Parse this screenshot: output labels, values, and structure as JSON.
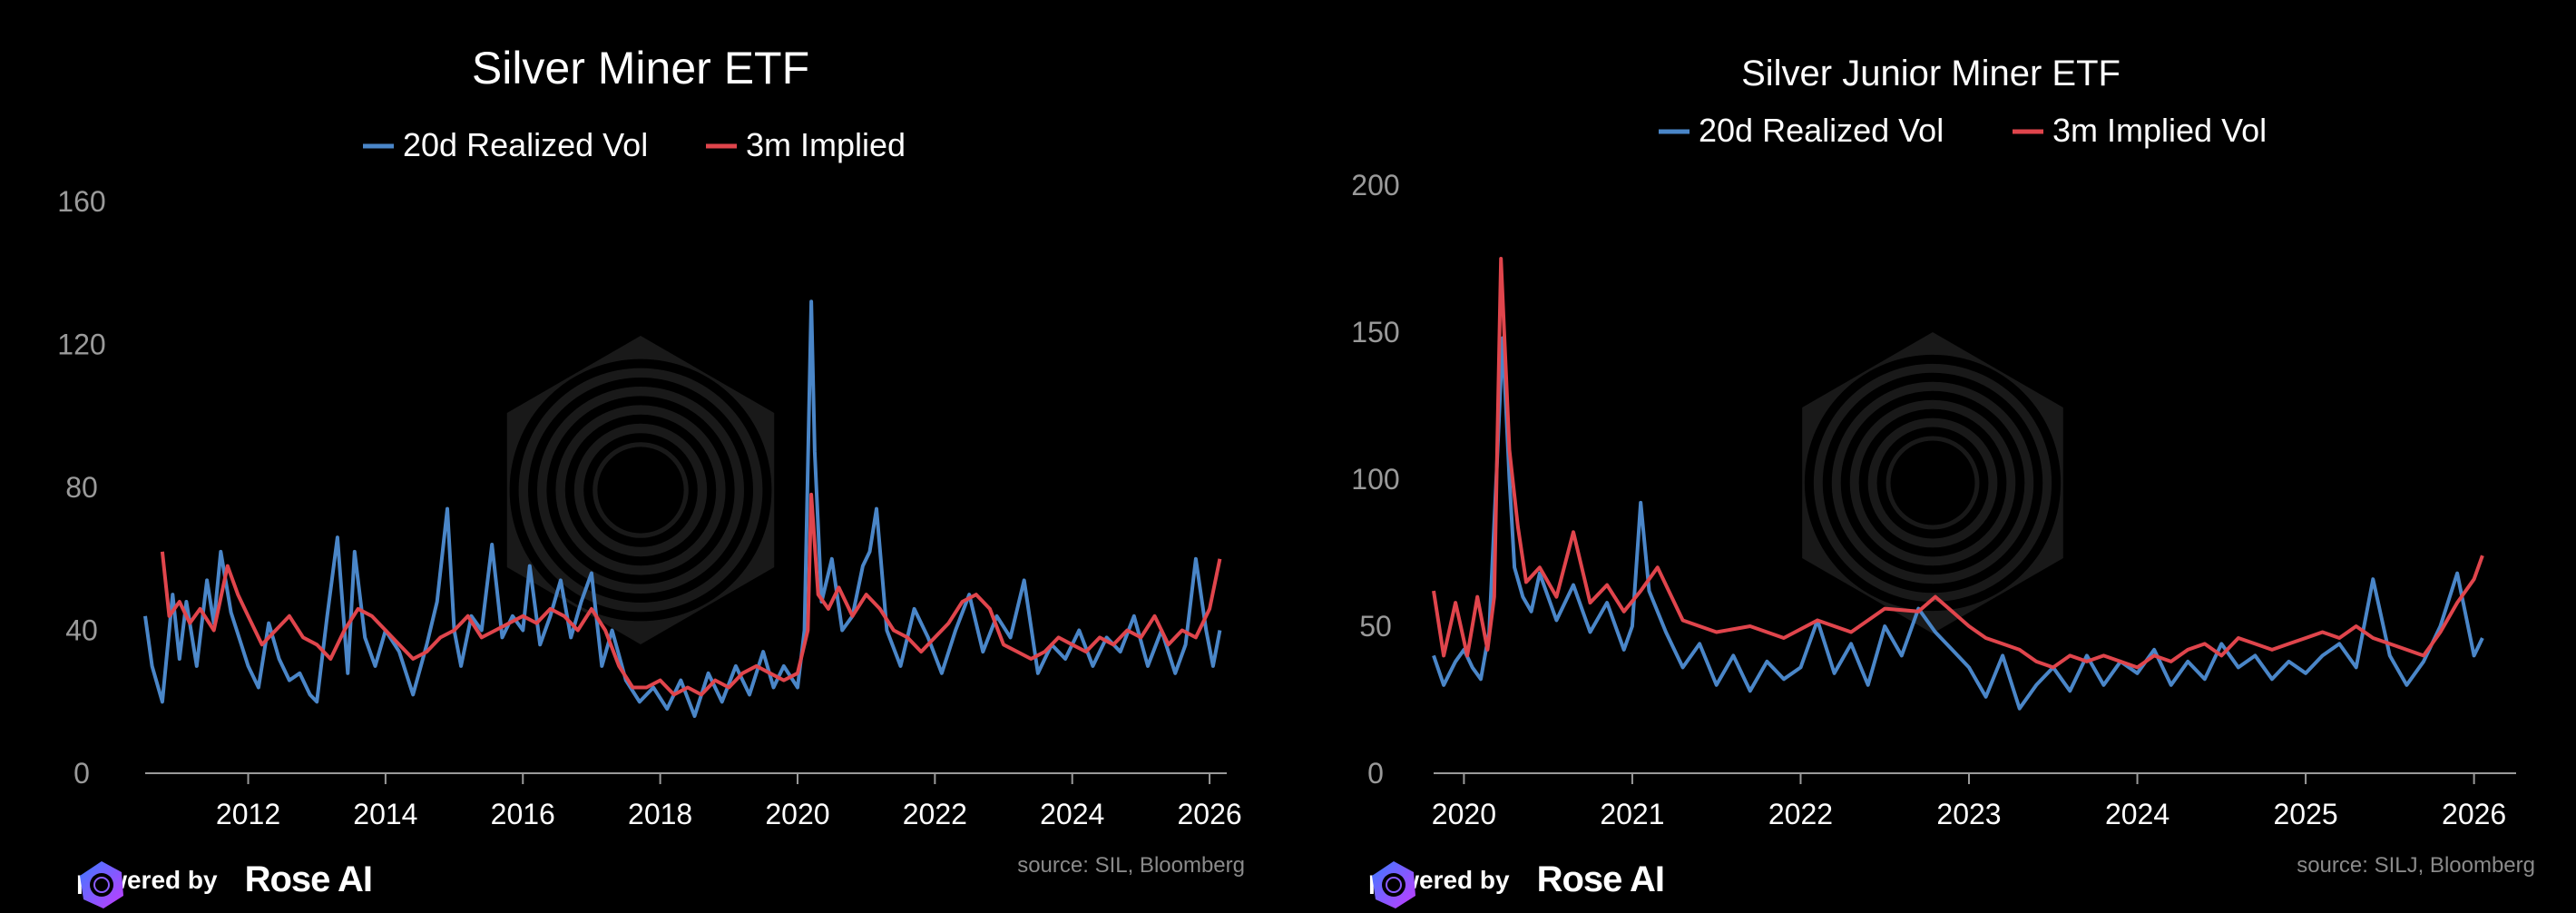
{
  "chart_data": [
    {
      "type": "line",
      "title": "Silver Miner ETF",
      "xlabel": "",
      "ylabel": "",
      "xlim": [
        2010.5,
        2026.25
      ],
      "ylim": [
        0,
        160
      ],
      "yticks": [
        0,
        40,
        80,
        120,
        160
      ],
      "xticks": [
        2012,
        2014,
        2016,
        2018,
        2020,
        2022,
        2024,
        2026
      ],
      "legend_position": "top-center",
      "source": "source: SIL, Bloomberg",
      "series": [
        {
          "name": "20d Realized Vol",
          "color": "#4a86c8",
          "x": [
            2010.5,
            2010.6,
            2010.75,
            2010.9,
            2011.0,
            2011.1,
            2011.25,
            2011.4,
            2011.5,
            2011.6,
            2011.75,
            2011.9,
            2012.0,
            2012.15,
            2012.3,
            2012.45,
            2012.6,
            2012.75,
            2012.9,
            2013.0,
            2013.15,
            2013.3,
            2013.45,
            2013.55,
            2013.7,
            2013.85,
            2014.0,
            2014.2,
            2014.4,
            2014.6,
            2014.75,
            2014.9,
            2015.0,
            2015.1,
            2015.25,
            2015.4,
            2015.55,
            2015.7,
            2015.85,
            2016.0,
            2016.1,
            2016.25,
            2016.4,
            2016.55,
            2016.7,
            2016.85,
            2017.0,
            2017.15,
            2017.3,
            2017.5,
            2017.7,
            2017.9,
            2018.1,
            2018.3,
            2018.5,
            2018.7,
            2018.9,
            2019.1,
            2019.3,
            2019.5,
            2019.65,
            2019.8,
            2020.0,
            2020.1,
            2020.2,
            2020.25,
            2020.35,
            2020.5,
            2020.65,
            2020.8,
            2020.95,
            2021.05,
            2021.15,
            2021.3,
            2021.5,
            2021.7,
            2021.9,
            2022.1,
            2022.3,
            2022.5,
            2022.7,
            2022.9,
            2023.1,
            2023.3,
            2023.5,
            2023.7,
            2023.9,
            2024.1,
            2024.3,
            2024.5,
            2024.7,
            2024.9,
            2025.1,
            2025.3,
            2025.5,
            2025.65,
            2025.8,
            2025.95,
            2026.05,
            2026.15
          ],
          "values": [
            44,
            30,
            20,
            50,
            32,
            48,
            30,
            54,
            42,
            62,
            45,
            36,
            30,
            24,
            42,
            32,
            26,
            28,
            22,
            20,
            44,
            66,
            28,
            62,
            38,
            30,
            40,
            34,
            22,
            36,
            48,
            74,
            40,
            30,
            44,
            40,
            64,
            38,
            44,
            40,
            58,
            36,
            44,
            54,
            38,
            48,
            56,
            30,
            40,
            26,
            20,
            24,
            18,
            26,
            16,
            28,
            20,
            30,
            22,
            34,
            24,
            30,
            24,
            40,
            132,
            90,
            48,
            60,
            40,
            44,
            58,
            62,
            74,
            40,
            30,
            46,
            38,
            28,
            40,
            50,
            34,
            44,
            38,
            54,
            28,
            36,
            32,
            40,
            30,
            38,
            34,
            44,
            30,
            40,
            28,
            36,
            60,
            40,
            30,
            40
          ]
        },
        {
          "name": "3m Implied",
          "color": "#e0454c",
          "x": [
            2010.75,
            2010.85,
            2011.0,
            2011.15,
            2011.3,
            2011.5,
            2011.7,
            2011.85,
            2012.0,
            2012.2,
            2012.4,
            2012.6,
            2012.8,
            2013.0,
            2013.2,
            2013.4,
            2013.6,
            2013.8,
            2014.0,
            2014.2,
            2014.4,
            2014.6,
            2014.8,
            2015.0,
            2015.2,
            2015.4,
            2015.6,
            2015.8,
            2016.0,
            2016.2,
            2016.4,
            2016.6,
            2016.8,
            2017.0,
            2017.2,
            2017.4,
            2017.6,
            2017.8,
            2018.0,
            2018.2,
            2018.4,
            2018.6,
            2018.8,
            2019.0,
            2019.2,
            2019.4,
            2019.6,
            2019.8,
            2020.0,
            2020.15,
            2020.2,
            2020.3,
            2020.45,
            2020.6,
            2020.8,
            2021.0,
            2021.2,
            2021.4,
            2021.6,
            2021.8,
            2022.0,
            2022.2,
            2022.4,
            2022.6,
            2022.8,
            2023.0,
            2023.2,
            2023.4,
            2023.6,
            2023.8,
            2024.0,
            2024.2,
            2024.4,
            2024.6,
            2024.8,
            2025.0,
            2025.2,
            2025.4,
            2025.6,
            2025.8,
            2026.0,
            2026.15
          ],
          "values": [
            62,
            44,
            48,
            42,
            46,
            40,
            58,
            50,
            44,
            36,
            40,
            44,
            38,
            36,
            32,
            40,
            46,
            44,
            40,
            36,
            32,
            34,
            38,
            40,
            44,
            38,
            40,
            42,
            44,
            42,
            46,
            44,
            40,
            46,
            40,
            30,
            24,
            24,
            26,
            22,
            24,
            22,
            26,
            24,
            28,
            30,
            28,
            26,
            28,
            40,
            78,
            50,
            46,
            52,
            44,
            50,
            46,
            40,
            38,
            34,
            38,
            42,
            48,
            50,
            46,
            36,
            34,
            32,
            34,
            38,
            36,
            34,
            38,
            36,
            40,
            38,
            44,
            36,
            40,
            38,
            46,
            60
          ]
        }
      ]
    },
    {
      "type": "line",
      "title": "Silver Junior Miner ETF",
      "xlabel": "",
      "ylabel": "",
      "xlim": [
        2019.82,
        2026.25
      ],
      "ylim": [
        0,
        200
      ],
      "yticks": [
        0,
        50,
        100,
        150,
        200
      ],
      "xticks": [
        2020,
        2021,
        2022,
        2023,
        2024,
        2025,
        2026
      ],
      "legend_position": "top-center",
      "source": "source: SILJ, Bloomberg",
      "series": [
        {
          "name": "20d Realized Vol",
          "color": "#4a86c8",
          "x": [
            2019.82,
            2019.88,
            2019.95,
            2020.0,
            2020.05,
            2020.1,
            2020.15,
            2020.2,
            2020.23,
            2020.27,
            2020.3,
            2020.35,
            2020.4,
            2020.45,
            2020.55,
            2020.65,
            2020.75,
            2020.85,
            2020.95,
            2021.0,
            2021.05,
            2021.1,
            2021.2,
            2021.3,
            2021.4,
            2021.5,
            2021.6,
            2021.7,
            2021.8,
            2021.9,
            2022.0,
            2022.1,
            2022.2,
            2022.3,
            2022.4,
            2022.5,
            2022.6,
            2022.7,
            2022.8,
            2022.9,
            2023.0,
            2023.1,
            2023.2,
            2023.3,
            2023.4,
            2023.5,
            2023.6,
            2023.7,
            2023.8,
            2023.9,
            2024.0,
            2024.1,
            2024.2,
            2024.3,
            2024.4,
            2024.5,
            2024.6,
            2024.7,
            2024.8,
            2024.9,
            2025.0,
            2025.1,
            2025.2,
            2025.3,
            2025.4,
            2025.5,
            2025.6,
            2025.7,
            2025.8,
            2025.9,
            2026.0,
            2026.05
          ],
          "values": [
            40,
            30,
            38,
            42,
            36,
            32,
            48,
            110,
            148,
            100,
            70,
            60,
            55,
            68,
            52,
            64,
            48,
            58,
            42,
            50,
            92,
            62,
            48,
            36,
            44,
            30,
            40,
            28,
            38,
            32,
            36,
            52,
            34,
            44,
            30,
            50,
            40,
            56,
            48,
            42,
            36,
            26,
            40,
            22,
            30,
            36,
            28,
            40,
            30,
            38,
            34,
            42,
            30,
            38,
            32,
            44,
            36,
            40,
            32,
            38,
            34,
            40,
            44,
            36,
            66,
            40,
            30,
            38,
            50,
            68,
            40,
            46
          ]
        },
        {
          "name": "3m Implied Vol",
          "color": "#e0454c",
          "x": [
            2019.82,
            2019.88,
            2019.95,
            2020.02,
            2020.08,
            2020.14,
            2020.18,
            2020.22,
            2020.27,
            2020.32,
            2020.37,
            2020.45,
            2020.55,
            2020.65,
            2020.75,
            2020.85,
            2020.95,
            2021.05,
            2021.15,
            2021.3,
            2021.5,
            2021.7,
            2021.9,
            2022.1,
            2022.3,
            2022.5,
            2022.7,
            2022.8,
            2022.9,
            2023.0,
            2023.1,
            2023.2,
            2023.3,
            2023.4,
            2023.5,
            2023.6,
            2023.7,
            2023.8,
            2023.9,
            2024.0,
            2024.1,
            2024.2,
            2024.3,
            2024.4,
            2024.5,
            2024.6,
            2024.7,
            2024.8,
            2024.9,
            2025.0,
            2025.1,
            2025.2,
            2025.3,
            2025.4,
            2025.5,
            2025.6,
            2025.7,
            2025.8,
            2025.9,
            2026.0,
            2026.05
          ],
          "values": [
            62,
            40,
            58,
            40,
            60,
            42,
            60,
            175,
            110,
            84,
            65,
            70,
            60,
            82,
            58,
            64,
            55,
            62,
            70,
            52,
            48,
            50,
            46,
            52,
            48,
            56,
            55,
            60,
            55,
            50,
            46,
            44,
            42,
            38,
            36,
            40,
            38,
            40,
            38,
            36,
            40,
            38,
            42,
            44,
            40,
            46,
            44,
            42,
            44,
            46,
            48,
            46,
            50,
            46,
            44,
            42,
            40,
            48,
            58,
            66,
            74
          ]
        }
      ]
    }
  ],
  "footer": {
    "powered_by": "powered by",
    "brand": "Rose AI"
  }
}
